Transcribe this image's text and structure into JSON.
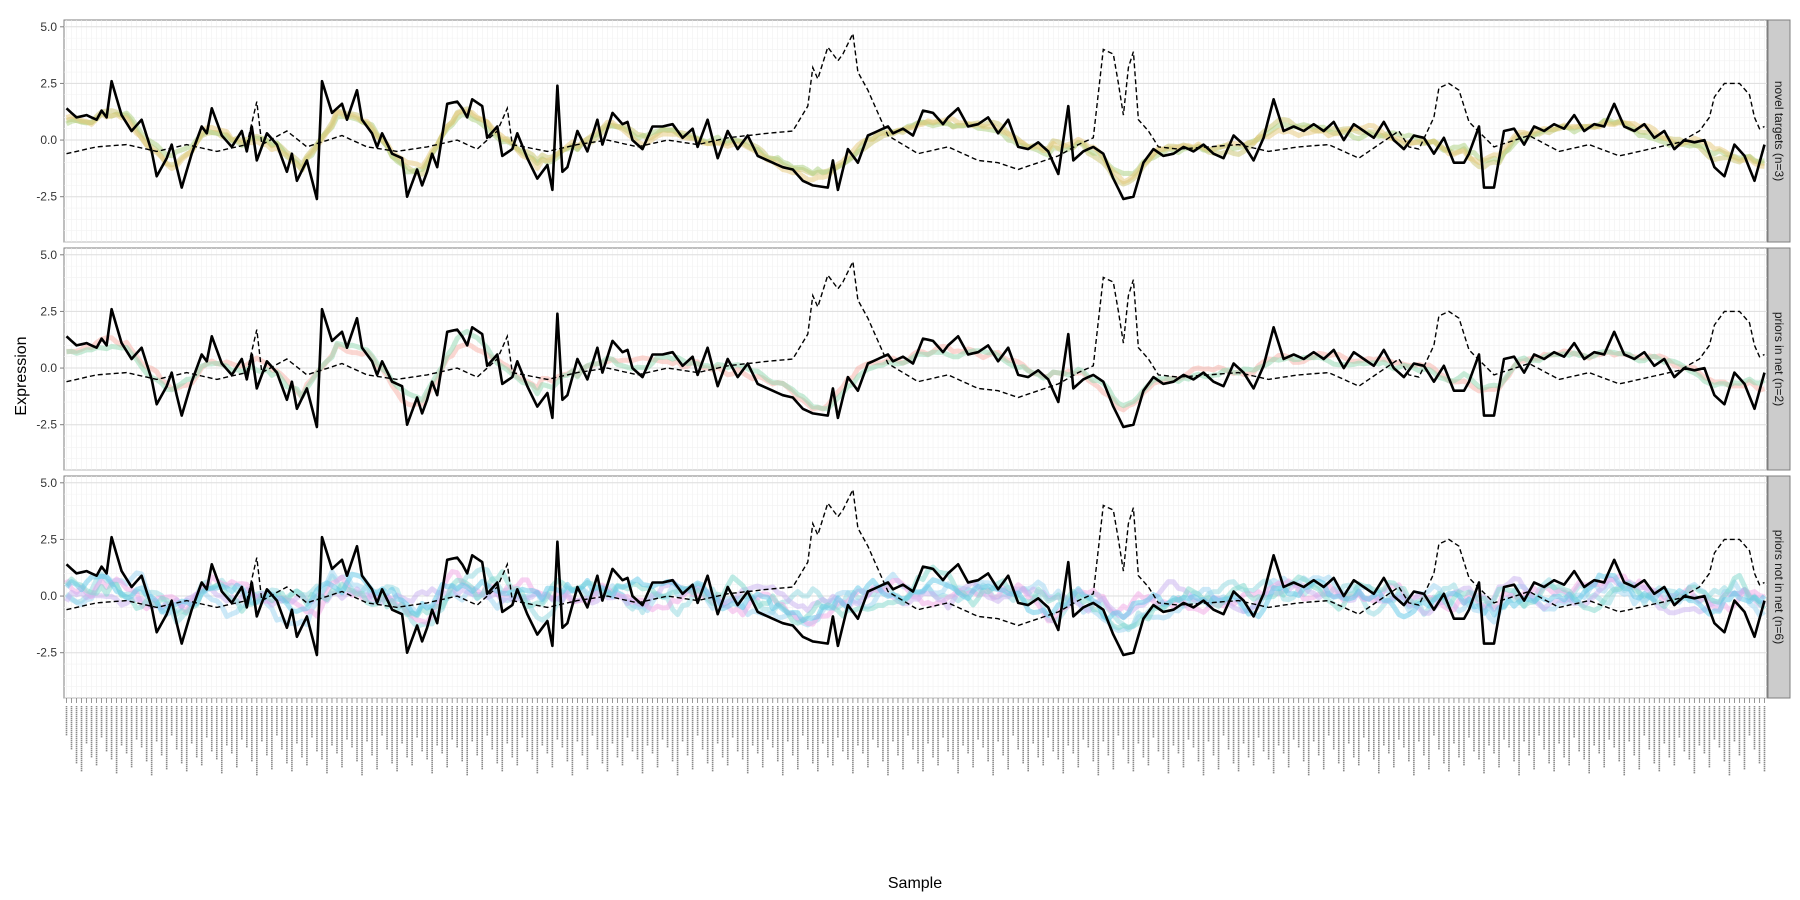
{
  "chart_data": {
    "type": "line",
    "xlabel": "Sample",
    "ylabel": "Expression",
    "ylim": [
      -4.5,
      5.3
    ],
    "y_ticks": [
      "5.0",
      "2.5",
      "0.0",
      "-2.5"
    ],
    "n_samples": 340,
    "grid": "on",
    "legend": "none",
    "panels": [
      {
        "strip_label": "novel targets (n=3)",
        "series": [
          {
            "role": "member",
            "color": "#c9c46e",
            "seed": 11,
            "corr": 0.85,
            "noise": 0.35,
            "smooth": 3
          },
          {
            "role": "member",
            "color": "#a9cf7e",
            "seed": 12,
            "corr": 0.8,
            "noise": 0.4,
            "smooth": 3
          },
          {
            "role": "member",
            "color": "#e6c878",
            "seed": 13,
            "corr": 0.82,
            "noise": 0.38,
            "smooth": 3
          }
        ]
      },
      {
        "strip_label": "priors in net (n=2)",
        "series": [
          {
            "role": "member",
            "color": "#f7b0a6",
            "seed": 21,
            "corr": 0.8,
            "noise": 0.45,
            "smooth": 3
          },
          {
            "role": "member",
            "color": "#8fd8b0",
            "seed": 22,
            "corr": 0.82,
            "noise": 0.4,
            "smooth": 3
          }
        ]
      },
      {
        "strip_label": "priors not in net (n=6)",
        "series": [
          {
            "role": "member",
            "color": "#8fd8e0",
            "seed": 31,
            "corr": 0.3,
            "noise": 0.9,
            "smooth": 2
          },
          {
            "role": "member",
            "color": "#9ad4f2",
            "seed": 32,
            "corr": 0.35,
            "noise": 0.85,
            "smooth": 2
          },
          {
            "role": "member",
            "color": "#f2a6e6",
            "seed": 33,
            "corr": 0.3,
            "noise": 0.8,
            "smooth": 2
          },
          {
            "role": "member",
            "color": "#c7b0f0",
            "seed": 34,
            "corr": 0.25,
            "noise": 0.7,
            "smooth": 2
          },
          {
            "role": "member",
            "color": "#7ed8cc",
            "seed": 35,
            "corr": 0.3,
            "noise": 0.9,
            "smooth": 2
          },
          {
            "role": "member",
            "color": "#60c8e8",
            "seed": 36,
            "corr": 0.35,
            "noise": 0.8,
            "smooth": 2
          }
        ]
      }
    ],
    "shared_series": [
      {
        "role": "centroid",
        "style": "solid",
        "color": "#000000",
        "keypoints": [
          [
            0,
            1.4
          ],
          [
            2,
            1.0
          ],
          [
            4,
            1.1
          ],
          [
            6,
            0.9
          ],
          [
            7,
            1.3
          ],
          [
            8,
            1.0
          ],
          [
            9,
            2.6
          ],
          [
            11,
            1.1
          ],
          [
            13,
            0.4
          ],
          [
            15,
            0.9
          ],
          [
            17,
            -0.5
          ],
          [
            18,
            -1.6
          ],
          [
            20,
            -0.8
          ],
          [
            21,
            -0.2
          ],
          [
            22,
            -1.2
          ],
          [
            23,
            -2.1
          ],
          [
            25,
            -0.6
          ],
          [
            27,
            0.6
          ],
          [
            28,
            0.3
          ],
          [
            29,
            1.4
          ],
          [
            31,
            0.2
          ],
          [
            33,
            -0.3
          ],
          [
            35,
            0.4
          ],
          [
            36,
            -0.5
          ],
          [
            37,
            0.6
          ],
          [
            38,
            -0.9
          ],
          [
            40,
            0.3
          ],
          [
            42,
            -0.2
          ],
          [
            44,
            -1.4
          ],
          [
            45,
            -0.6
          ],
          [
            46,
            -1.8
          ],
          [
            48,
            -0.9
          ],
          [
            50,
            -2.6
          ],
          [
            51,
            2.6
          ],
          [
            53,
            1.2
          ],
          [
            55,
            1.6
          ],
          [
            56,
            0.9
          ],
          [
            58,
            2.2
          ],
          [
            59,
            0.9
          ],
          [
            61,
            0.3
          ],
          [
            62,
            -0.3
          ],
          [
            63,
            0.3
          ],
          [
            65,
            -0.6
          ],
          [
            67,
            -0.8
          ],
          [
            68,
            -2.5
          ],
          [
            70,
            -1.3
          ],
          [
            71,
            -2.0
          ],
          [
            72,
            -1.4
          ],
          [
            73,
            -0.6
          ],
          [
            74,
            -1.2
          ],
          [
            76,
            1.6
          ],
          [
            78,
            1.7
          ],
          [
            79,
            1.4
          ],
          [
            80,
            1.0
          ],
          [
            81,
            1.8
          ],
          [
            83,
            1.5
          ],
          [
            84,
            0.1
          ],
          [
            86,
            0.6
          ],
          [
            87,
            -0.7
          ],
          [
            89,
            -0.4
          ],
          [
            90,
            0.3
          ],
          [
            92,
            -0.8
          ],
          [
            94,
            -1.7
          ],
          [
            96,
            -1.1
          ],
          [
            97,
            -2.2
          ],
          [
            98,
            2.4
          ],
          [
            99,
            -1.4
          ],
          [
            100,
            -1.2
          ],
          [
            102,
            0.4
          ],
          [
            104,
            -0.5
          ],
          [
            106,
            0.9
          ],
          [
            107,
            -0.2
          ],
          [
            109,
            1.2
          ],
          [
            111,
            0.7
          ],
          [
            112,
            0.8
          ],
          [
            113,
            0.0
          ],
          [
            115,
            -0.4
          ],
          [
            117,
            0.6
          ],
          [
            119,
            0.6
          ],
          [
            121,
            0.7
          ],
          [
            123,
            0.1
          ],
          [
            125,
            0.5
          ],
          [
            126,
            -0.3
          ],
          [
            128,
            0.9
          ],
          [
            130,
            -0.8
          ],
          [
            132,
            0.4
          ],
          [
            134,
            -0.4
          ],
          [
            136,
            0.2
          ],
          [
            138,
            -0.7
          ],
          [
            141,
            -1.0
          ],
          [
            143,
            -1.2
          ],
          [
            145,
            -1.3
          ],
          [
            147,
            -1.8
          ],
          [
            149,
            -2.0
          ],
          [
            152,
            -2.1
          ],
          [
            153,
            -0.9
          ],
          [
            154,
            -2.2
          ],
          [
            156,
            -0.4
          ],
          [
            158,
            -1.0
          ],
          [
            160,
            0.2
          ],
          [
            162,
            0.4
          ],
          [
            164,
            0.6
          ],
          [
            165,
            0.3
          ],
          [
            167,
            0.5
          ],
          [
            169,
            0.2
          ],
          [
            171,
            1.3
          ],
          [
            173,
            1.2
          ],
          [
            175,
            0.7
          ],
          [
            176,
            1.0
          ],
          [
            178,
            1.4
          ],
          [
            180,
            0.6
          ],
          [
            182,
            0.7
          ],
          [
            184,
            1.0
          ],
          [
            186,
            0.3
          ],
          [
            188,
            0.9
          ],
          [
            190,
            -0.3
          ],
          [
            192,
            -0.4
          ],
          [
            194,
            -0.1
          ],
          [
            196,
            -0.5
          ],
          [
            198,
            -1.5
          ],
          [
            200,
            1.5
          ],
          [
            201,
            -0.9
          ],
          [
            203,
            -0.5
          ],
          [
            205,
            -0.3
          ],
          [
            207,
            -0.6
          ],
          [
            209,
            -1.7
          ],
          [
            211,
            -2.6
          ],
          [
            213,
            -2.5
          ],
          [
            215,
            -1.0
          ],
          [
            217,
            -0.4
          ],
          [
            219,
            -0.7
          ],
          [
            221,
            -0.6
          ],
          [
            223,
            -0.3
          ],
          [
            225,
            -0.5
          ],
          [
            227,
            -0.2
          ],
          [
            229,
            -0.6
          ],
          [
            231,
            -0.8
          ],
          [
            233,
            0.2
          ],
          [
            235,
            -0.2
          ],
          [
            237,
            -0.9
          ],
          [
            239,
            0.1
          ],
          [
            241,
            1.8
          ],
          [
            243,
            0.4
          ],
          [
            245,
            0.6
          ],
          [
            247,
            0.4
          ],
          [
            249,
            0.7
          ],
          [
            251,
            0.4
          ],
          [
            253,
            0.8
          ],
          [
            255,
            0.0
          ],
          [
            257,
            0.7
          ],
          [
            259,
            0.4
          ],
          [
            261,
            0.1
          ],
          [
            263,
            0.8
          ],
          [
            265,
            0.0
          ],
          [
            267,
            -0.4
          ],
          [
            269,
            0.2
          ],
          [
            271,
            0.1
          ],
          [
            273,
            -0.6
          ],
          [
            275,
            0.1
          ],
          [
            277,
            -1.0
          ],
          [
            279,
            -1.0
          ],
          [
            280,
            -0.6
          ],
          [
            282,
            0.6
          ],
          [
            283,
            -2.1
          ],
          [
            285,
            -2.1
          ],
          [
            287,
            0.4
          ],
          [
            289,
            0.5
          ],
          [
            291,
            -0.2
          ],
          [
            293,
            0.6
          ],
          [
            295,
            0.4
          ],
          [
            297,
            0.7
          ],
          [
            299,
            0.5
          ],
          [
            301,
            1.1
          ],
          [
            303,
            0.4
          ],
          [
            305,
            0.7
          ],
          [
            307,
            0.6
          ],
          [
            309,
            1.6
          ],
          [
            311,
            0.6
          ],
          [
            313,
            0.4
          ],
          [
            315,
            0.7
          ],
          [
            317,
            0.1
          ],
          [
            319,
            0.4
          ],
          [
            321,
            -0.4
          ],
          [
            323,
            0.0
          ],
          [
            325,
            -0.1
          ],
          [
            327,
            0.0
          ],
          [
            329,
            -1.2
          ],
          [
            331,
            -1.6
          ],
          [
            333,
            -0.2
          ],
          [
            335,
            -0.7
          ],
          [
            337,
            -1.8
          ],
          [
            339,
            -0.2
          ]
        ]
      },
      {
        "role": "regulator",
        "style": "dashed",
        "color": "#000000",
        "keypoints": [
          [
            0,
            -0.6
          ],
          [
            6,
            -0.3
          ],
          [
            12,
            -0.2
          ],
          [
            18,
            -0.5
          ],
          [
            24,
            -0.2
          ],
          [
            30,
            -0.5
          ],
          [
            36,
            -0.2
          ],
          [
            38,
            1.7
          ],
          [
            39,
            -0.2
          ],
          [
            44,
            0.4
          ],
          [
            48,
            -0.3
          ],
          [
            55,
            0.2
          ],
          [
            60,
            -0.3
          ],
          [
            66,
            -0.5
          ],
          [
            72,
            -0.3
          ],
          [
            78,
            0.0
          ],
          [
            82,
            -0.4
          ],
          [
            86,
            0.4
          ],
          [
            88,
            1.4
          ],
          [
            89,
            -0.2
          ],
          [
            96,
            -0.5
          ],
          [
            102,
            -0.2
          ],
          [
            108,
            0.0
          ],
          [
            114,
            -0.3
          ],
          [
            120,
            0.0
          ],
          [
            126,
            -0.2
          ],
          [
            132,
            0.1
          ],
          [
            140,
            0.3
          ],
          [
            145,
            0.4
          ],
          [
            148,
            1.5
          ],
          [
            149,
            3.2
          ],
          [
            150,
            2.7
          ],
          [
            152,
            4.1
          ],
          [
            154,
            3.5
          ],
          [
            155,
            3.8
          ],
          [
            157,
            4.7
          ],
          [
            158,
            3.0
          ],
          [
            160,
            2.2
          ],
          [
            162,
            1.2
          ],
          [
            164,
            0.2
          ],
          [
            170,
            -0.6
          ],
          [
            176,
            -0.3
          ],
          [
            182,
            -0.9
          ],
          [
            186,
            -1.0
          ],
          [
            190,
            -1.3
          ],
          [
            194,
            -1.0
          ],
          [
            198,
            -0.7
          ],
          [
            202,
            -0.2
          ],
          [
            205,
            0.1
          ],
          [
            207,
            4.0
          ],
          [
            209,
            3.8
          ],
          [
            210,
            2.5
          ],
          [
            211,
            1.1
          ],
          [
            212,
            3.2
          ],
          [
            213,
            3.9
          ],
          [
            214,
            0.9
          ],
          [
            216,
            0.4
          ],
          [
            218,
            -0.3
          ],
          [
            222,
            -0.4
          ],
          [
            228,
            -0.3
          ],
          [
            234,
            -0.2
          ],
          [
            240,
            -0.5
          ],
          [
            246,
            -0.3
          ],
          [
            252,
            -0.2
          ],
          [
            258,
            -0.8
          ],
          [
            262,
            -0.2
          ],
          [
            266,
            0.4
          ],
          [
            268,
            -0.3
          ],
          [
            270,
            -0.4
          ],
          [
            273,
            1.0
          ],
          [
            274,
            2.3
          ],
          [
            276,
            2.5
          ],
          [
            278,
            2.2
          ],
          [
            280,
            0.8
          ],
          [
            285,
            -0.3
          ],
          [
            292,
            0.2
          ],
          [
            298,
            -0.5
          ],
          [
            304,
            -0.2
          ],
          [
            310,
            -0.7
          ],
          [
            316,
            -0.4
          ],
          [
            322,
            -0.1
          ],
          [
            326,
            0.4
          ],
          [
            328,
            1.0
          ],
          [
            329,
            1.9
          ],
          [
            331,
            2.5
          ],
          [
            334,
            2.5
          ],
          [
            336,
            2.0
          ],
          [
            337,
            1.0
          ],
          [
            338,
            0.5
          ],
          [
            339,
            0.6
          ]
        ]
      }
    ]
  }
}
